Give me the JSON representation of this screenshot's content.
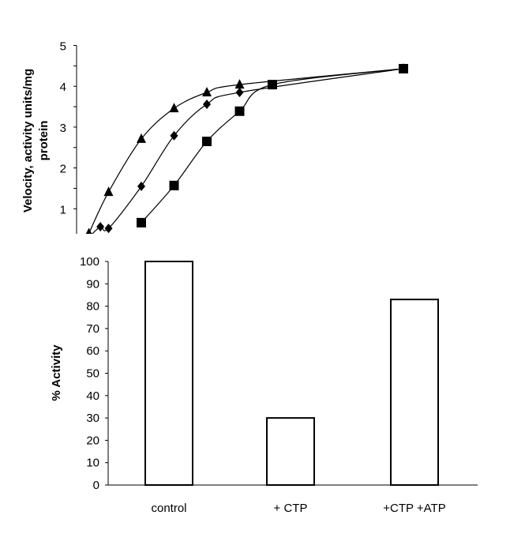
{
  "chart_data": [
    {
      "type": "line",
      "title": "",
      "xlabel": "",
      "ylabel_lines": [
        "Velocity, activity units/mg",
        "protein"
      ],
      "ylim": [
        0.4,
        5
      ],
      "xlim": [
        0,
        12
      ],
      "y_ticks": [
        "1",
        "2",
        "3",
        "4",
        "5"
      ],
      "grid": false,
      "legend": "none",
      "series": [
        {
          "marker": "triangle",
          "x": [
            0.4,
            1,
            2,
            3,
            4,
            5,
            10
          ],
          "y": [
            0.4,
            1.41,
            2.71,
            3.46,
            3.85,
            4.04,
            4.43
          ]
        },
        {
          "marker": "diamond",
          "x": [
            0.4,
            0.75,
            1,
            2,
            3,
            4,
            5,
            10
          ],
          "y": [
            0.3,
            0.56,
            0.52,
            1.55,
            2.79,
            3.56,
            3.85,
            4.43
          ]
        },
        {
          "marker": "square",
          "x": [
            2,
            3,
            4,
            5,
            6,
            10
          ],
          "y": [
            0.66,
            1.57,
            2.65,
            3.39,
            4.04,
            4.43
          ]
        }
      ]
    },
    {
      "type": "bar",
      "title": "",
      "xlabel": "",
      "ylabel": "% Activity",
      "ylim": [
        0,
        100
      ],
      "y_ticks": [
        "0",
        "10",
        "20",
        "30",
        "40",
        "50",
        "60",
        "70",
        "80",
        "90",
        "100"
      ],
      "categories": [
        "control",
        "+ CTP",
        "+CTP +ATP"
      ],
      "values": [
        100,
        30,
        83
      ],
      "grid": false,
      "bar_fill": "#ffffff",
      "bar_stroke": "#000000"
    }
  ]
}
